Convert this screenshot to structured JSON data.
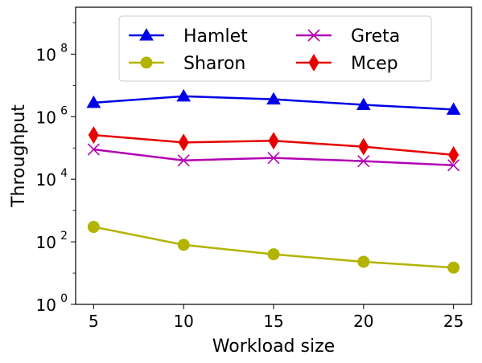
{
  "chart_data": {
    "type": "line",
    "xlabel": "Workload size",
    "ylabel": "Throughput",
    "x": [
      5,
      10,
      15,
      20,
      25
    ],
    "xlim": [
      4,
      26
    ],
    "ylim_log10": [
      0,
      9.5
    ],
    "yscale": "log",
    "yticks": [
      {
        "exp": 0,
        "base": "10",
        "sup": "0"
      },
      {
        "exp": 2,
        "base": "10",
        "sup": "2"
      },
      {
        "exp": 4,
        "base": "10",
        "sup": "4"
      },
      {
        "exp": 6,
        "base": "10",
        "sup": "6"
      },
      {
        "exp": 8,
        "base": "10",
        "sup": "8"
      }
    ],
    "grid": false,
    "legend_position": "top-center",
    "series": [
      {
        "name": "Hamlet",
        "color": "#0000e6",
        "marker": "triangle",
        "values": [
          2800000,
          4500000,
          3600000,
          2400000,
          1700000
        ]
      },
      {
        "name": "Greta",
        "color": "#b300b3",
        "marker": "x",
        "values": [
          90000,
          40000,
          48000,
          38000,
          28000
        ]
      },
      {
        "name": "Sharon",
        "color": "#b3b300",
        "marker": "circle",
        "values": [
          300,
          80,
          40,
          23,
          15
        ]
      },
      {
        "name": "Mcep",
        "color": "#e60000",
        "marker": "diamond",
        "values": [
          260000,
          150000,
          170000,
          110000,
          60000
        ]
      }
    ]
  }
}
